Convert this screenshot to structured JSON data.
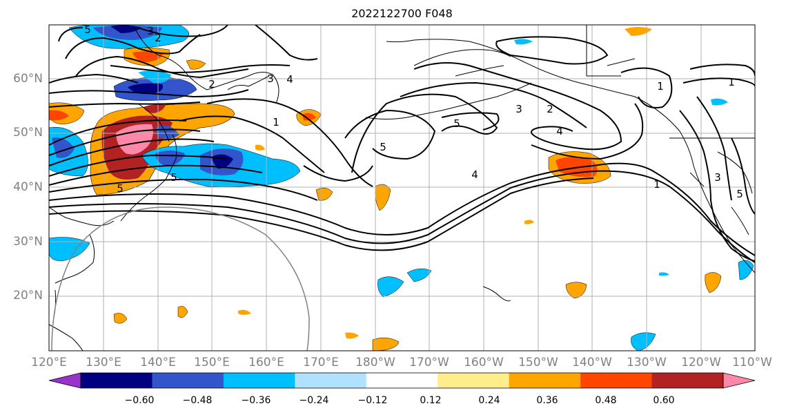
{
  "title": "2022122700 F048",
  "lon_labels": [
    "120°E",
    "130°E",
    "140°E",
    "150°E",
    "160°E",
    "170°E",
    "180°W",
    "170°W",
    "160°W",
    "150°W",
    "140°W",
    "130°W",
    "120°W",
    "110°W"
  ],
  "lat_labels": [
    "60°N",
    "50°N",
    "40°N",
    "30°N",
    "20°N"
  ],
  "colorbar": {
    "colors": [
      "#9933cc",
      "#000080",
      "#3355cc",
      "#00bfff",
      "#b0e2ff",
      "#ffffff",
      "#ffec8b",
      "#ffa500",
      "#ff4500",
      "#b22222",
      "#ff88aa"
    ],
    "labels": [
      "−0.60",
      "−0.48",
      "−0.36",
      "−0.24",
      "−0.12",
      "0.12",
      "0.24",
      "0.36",
      "0.48",
      "0.60"
    ]
  },
  "contour_labels": [
    "5",
    "3",
    "2",
    "2",
    "3",
    "4",
    "1",
    "5",
    "5",
    "3",
    "2",
    "5",
    "4",
    "4",
    "5",
    "1",
    "1",
    "3",
    "5",
    "1"
  ]
}
